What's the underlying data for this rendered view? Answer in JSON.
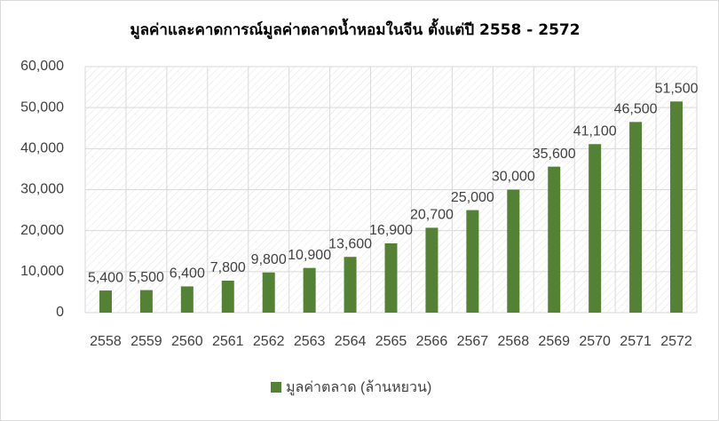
{
  "chart_data": {
    "type": "bar",
    "title": "มูลค่าและคาดการณ์มูลค่าตลาดน้ำหอมในจีน ตั้งแต่ปี 2558 - 2572",
    "categories": [
      "2558",
      "2559",
      "2560",
      "2561",
      "2562",
      "2563",
      "2564",
      "2565",
      "2566",
      "2567",
      "2568",
      "2569",
      "2570",
      "2571",
      "2572"
    ],
    "series": [
      {
        "name": "มูลค่าตลาด (ล้านหยวน)",
        "color": "#548235",
        "values": [
          5400,
          5500,
          6400,
          7800,
          9800,
          10900,
          13600,
          16900,
          20700,
          25000,
          30000,
          35600,
          41100,
          46500,
          51500
        ],
        "value_labels": [
          "5,400",
          "5,500",
          "6,400",
          "7,800",
          "9,800",
          "10,900",
          "13,600",
          "16,900",
          "20,700",
          "25,000",
          "30,000",
          "35,600",
          "41,100",
          "46,500",
          "51,500"
        ]
      }
    ],
    "ylim": [
      0,
      60000
    ],
    "yticks": [
      0,
      {
        "value": 10000,
        "label": "10,000"
      },
      {
        "value": 20000,
        "label": "20,000"
      },
      {
        "value": 30000,
        "label": "30,000"
      },
      {
        "value": 40000,
        "label": "40,000"
      },
      {
        "value": 50000,
        "label": "50,000"
      },
      {
        "value": 60000,
        "label": "60,000"
      }
    ],
    "grid": true,
    "legend": "bottom"
  }
}
